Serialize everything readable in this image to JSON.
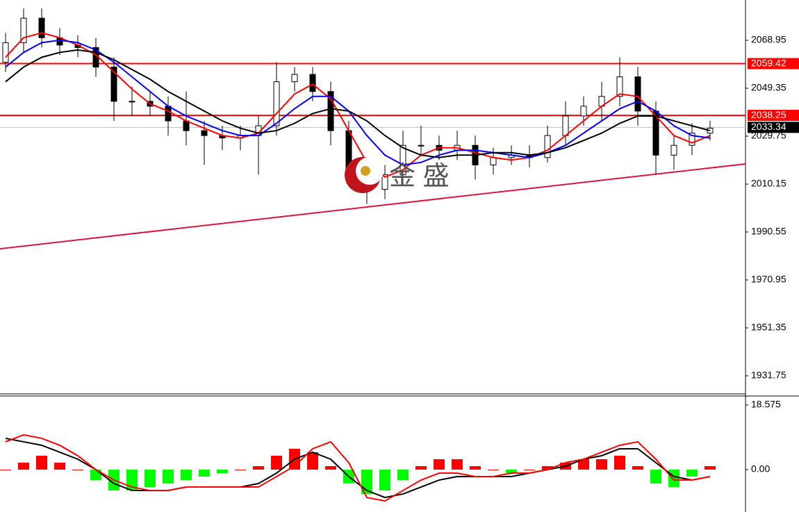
{
  "chart_data": [
    {
      "type": "candlestick",
      "watermark": "金 盛",
      "ylim": [
        1924.35,
        2085.43
      ],
      "yticks": [
        2068.95,
        2049.35,
        2029.75,
        2010.15,
        1990.55,
        1970.95,
        1951.35,
        1931.75
      ],
      "ohlc": [
        [
          2060,
          2072,
          2056,
          2068
        ],
        [
          2068,
          2082,
          2064,
          2078
        ],
        [
          2078,
          2082,
          2066,
          2070
        ],
        [
          2070,
          2074,
          2063,
          2067
        ],
        [
          2067,
          2071,
          2062,
          2066
        ],
        [
          2066,
          2070,
          2054,
          2058
        ],
        [
          2058,
          2062,
          2036,
          2044
        ],
        [
          2044,
          2050,
          2038,
          2044
        ],
        [
          2044,
          2048,
          2038,
          2042
        ],
        [
          2042,
          2046,
          2030,
          2036
        ],
        [
          2036,
          2048,
          2026,
          2032
        ],
        [
          2032,
          2036,
          2018,
          2030
        ],
        [
          2030,
          2034,
          2024,
          2029
        ],
        [
          2029,
          2034,
          2024,
          2030
        ],
        [
          2030,
          2038,
          2014,
          2034
        ],
        [
          2034,
          2060,
          2030,
          2052
        ],
        [
          2052,
          2058,
          2048,
          2055
        ],
        [
          2055,
          2058,
          2044,
          2048
        ],
        [
          2048,
          2052,
          2026,
          2032
        ],
        [
          2032,
          2036,
          2012,
          2016
        ],
        [
          2016,
          2020,
          2002,
          2008
        ],
        [
          2008,
          2018,
          2004,
          2014
        ],
        [
          2014,
          2032,
          2010,
          2026
        ],
        [
          2026,
          2034,
          2022,
          2026
        ],
        [
          2026,
          2030,
          2020,
          2024
        ],
        [
          2024,
          2032,
          2020,
          2026
        ],
        [
          2026,
          2030,
          2012,
          2018
        ],
        [
          2018,
          2025,
          2014,
          2021
        ],
        [
          2021,
          2026,
          2018,
          2022
        ],
        [
          2022,
          2026,
          2017,
          2021
        ],
        [
          2021,
          2034,
          2019,
          2030
        ],
        [
          2030,
          2044,
          2026,
          2038
        ],
        [
          2038,
          2046,
          2034,
          2042
        ],
        [
          2042,
          2052,
          2036,
          2046
        ],
        [
          2046,
          2062,
          2042,
          2054
        ],
        [
          2054,
          2058,
          2034,
          2040
        ],
        [
          2040,
          2044,
          2014,
          2022
        ],
        [
          2022,
          2030,
          2016,
          2026
        ],
        [
          2026,
          2035,
          2022,
          2031
        ],
        [
          2031,
          2036,
          2028,
          2033
        ]
      ],
      "series": [
        {
          "color": "#ff0000",
          "values": [
            2062,
            2070,
            2072,
            2070,
            2067,
            2063,
            2056,
            2049,
            2043,
            2040,
            2036,
            2033,
            2030,
            2029,
            2031,
            2039,
            2047,
            2051,
            2045,
            2032,
            2019,
            2013,
            2016,
            2022,
            2025,
            2025,
            2023,
            2021,
            2020,
            2021,
            2024,
            2030,
            2036,
            2042,
            2047,
            2046,
            2038,
            2030,
            2027,
            2030
          ]
        },
        {
          "color": "#0000ff",
          "values": [
            2058,
            2064,
            2068,
            2069,
            2068,
            2065,
            2060,
            2054,
            2048,
            2042,
            2038,
            2035,
            2032,
            2030,
            2030,
            2035,
            2041,
            2046,
            2046,
            2040,
            2030,
            2022,
            2018,
            2019,
            2022,
            2024,
            2024,
            2023,
            2022,
            2021,
            2023,
            2026,
            2031,
            2036,
            2041,
            2044,
            2040,
            2034,
            2030,
            2029
          ]
        },
        {
          "color": "#000000",
          "values": [
            2052,
            2058,
            2062,
            2064,
            2065,
            2064,
            2061,
            2057,
            2053,
            2048,
            2044,
            2040,
            2036,
            2033,
            2031,
            2032,
            2035,
            2039,
            2041,
            2040,
            2036,
            2030,
            2025,
            2022,
            2021,
            2022,
            2022,
            2023,
            2023,
            2022,
            2023,
            2025,
            2028,
            2031,
            2035,
            2038,
            2038,
            2036,
            2034,
            2032
          ]
        }
      ],
      "levels": [
        {
          "value": 2059.42,
          "color": "#ff0000"
        },
        {
          "value": 2038.25,
          "color": "#ff0000"
        },
        {
          "value": 2033.34,
          "color": "#000000"
        }
      ],
      "trendline": [
        1983.7,
        2018.4
      ],
      "trendline_color": "#dc143c"
    },
    {
      "type": "macd",
      "ylim": [
        -12.18,
        21.17
      ],
      "yticks": [
        18.575,
        {
          "value": 0,
          "label": "0.00"
        }
      ],
      "up_color": "#ff0000",
      "down_color": "#00ff00",
      "histogram": [
        0,
        2,
        4,
        2,
        0,
        -3,
        -6,
        -6,
        -5,
        -4,
        -3,
        -2,
        -1,
        0,
        1,
        4,
        6,
        5,
        1,
        -4,
        -7,
        -6,
        -3,
        1,
        3,
        3,
        1,
        0,
        -1,
        0,
        1,
        2,
        3,
        3,
        4,
        1,
        -4,
        -5,
        -2,
        1
      ],
      "series": [
        {
          "color": "#000000",
          "values": [
            9,
            8,
            7,
            5,
            3,
            0,
            -4,
            -6,
            -6,
            -6,
            -5,
            -5,
            -5,
            -5,
            -4,
            -1,
            3,
            5,
            3,
            -2,
            -6,
            -8,
            -7,
            -5,
            -3,
            -2,
            -2,
            -2,
            -2,
            -1,
            0,
            1,
            3,
            4,
            6,
            6,
            2,
            -2,
            -3,
            -2
          ]
        },
        {
          "color": "#ff0000",
          "values": [
            8,
            10,
            9,
            7,
            4,
            0,
            -3,
            -5,
            -6,
            -6,
            -5,
            -5,
            -5,
            -5,
            -5,
            -2,
            1,
            6,
            8,
            2,
            -8,
            -9,
            -6,
            -3,
            -1,
            -1,
            -2,
            -2,
            -1,
            -1,
            0,
            2,
            3,
            5,
            7,
            8,
            3,
            -3,
            -3,
            -2
          ]
        }
      ]
    }
  ]
}
